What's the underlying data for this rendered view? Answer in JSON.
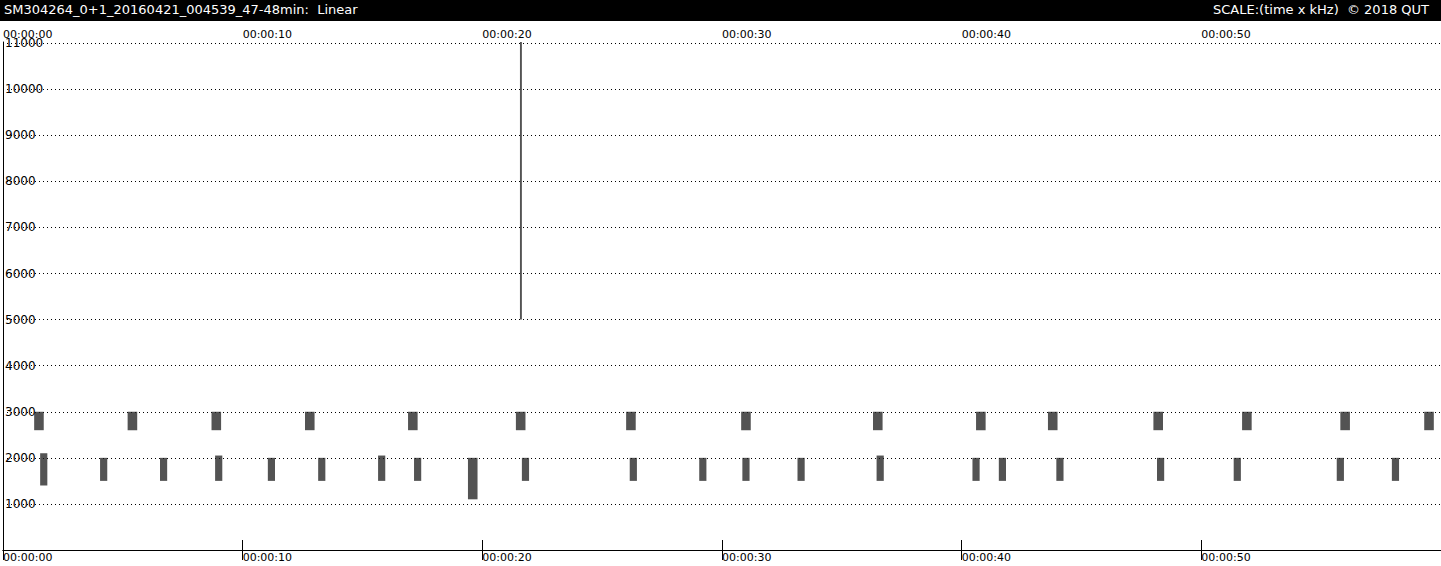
{
  "chart_data": {
    "type": "spectrogram",
    "title": "SM304264_0+1_20160421_004539_47-48min:  Linear",
    "annotations": [
      "SCALE:(time x kHz)  © 2018 QUT"
    ],
    "xlim": [
      0,
      60
    ],
    "xticks": [
      {
        "value": 0,
        "label": "00:00:00"
      },
      {
        "value": 10,
        "label": "00:00:10"
      },
      {
        "value": 20,
        "label": "00:00:20"
      },
      {
        "value": 30,
        "label": "00:00:30"
      },
      {
        "value": 40,
        "label": "00:00:40"
      },
      {
        "value": 50,
        "label": "00:00:50"
      }
    ],
    "ylim": [
      0,
      11025
    ],
    "yticks": [
      1000,
      2000,
      3000,
      4000,
      5000,
      6000,
      7000,
      8000,
      9000,
      10000,
      11000
    ],
    "grid": true,
    "color": "#1a1a1a",
    "cells": [
      [
        1.3,
        1.7,
        2600,
        3000
      ],
      [
        5.2,
        5.6,
        2600,
        3000
      ],
      [
        8.7,
        9.1,
        2600,
        3000
      ],
      [
        12.6,
        13.0,
        2600,
        3000
      ],
      [
        16.9,
        17.3,
        2600,
        3000
      ],
      [
        21.4,
        21.8,
        2600,
        3000
      ],
      [
        26.0,
        26.4,
        2600,
        3000
      ],
      [
        30.8,
        31.2,
        2600,
        3000
      ],
      [
        36.3,
        36.7,
        2600,
        3000
      ],
      [
        40.6,
        41.0,
        2600,
        3000
      ],
      [
        43.6,
        44.0,
        2600,
        3000
      ],
      [
        48.0,
        48.4,
        2600,
        3000
      ],
      [
        51.7,
        52.1,
        2600,
        3000
      ],
      [
        55.8,
        56.2,
        2600,
        3000
      ],
      [
        59.3,
        59.7,
        2600,
        3000
      ],
      [
        1.55,
        1.85,
        1400,
        2100
      ],
      [
        4.05,
        4.35,
        1500,
        2000
      ],
      [
        6.55,
        6.85,
        1500,
        2000
      ],
      [
        8.85,
        9.15,
        1500,
        2050
      ],
      [
        11.05,
        11.35,
        1500,
        2000
      ],
      [
        13.15,
        13.45,
        1500,
        2000
      ],
      [
        15.65,
        15.95,
        1500,
        2050
      ],
      [
        17.15,
        17.45,
        1500,
        2000
      ],
      [
        19.4,
        19.8,
        1100,
        2000
      ],
      [
        21.65,
        21.95,
        1500,
        2000
      ],
      [
        26.15,
        26.45,
        1500,
        2000
      ],
      [
        29.05,
        29.35,
        1500,
        2000
      ],
      [
        30.85,
        31.15,
        1500,
        2000
      ],
      [
        33.15,
        33.45,
        1500,
        2000
      ],
      [
        36.45,
        36.75,
        1500,
        2050
      ],
      [
        40.45,
        40.75,
        1500,
        2000
      ],
      [
        41.55,
        41.85,
        1500,
        2000
      ],
      [
        43.95,
        44.25,
        1500,
        2000
      ],
      [
        48.15,
        48.45,
        1500,
        2000
      ],
      [
        51.35,
        51.65,
        1500,
        2000
      ],
      [
        55.65,
        55.95,
        1500,
        2000
      ],
      [
        57.95,
        58.25,
        1500,
        2000
      ],
      [
        21.57,
        21.65,
        5000,
        11025
      ]
    ]
  }
}
